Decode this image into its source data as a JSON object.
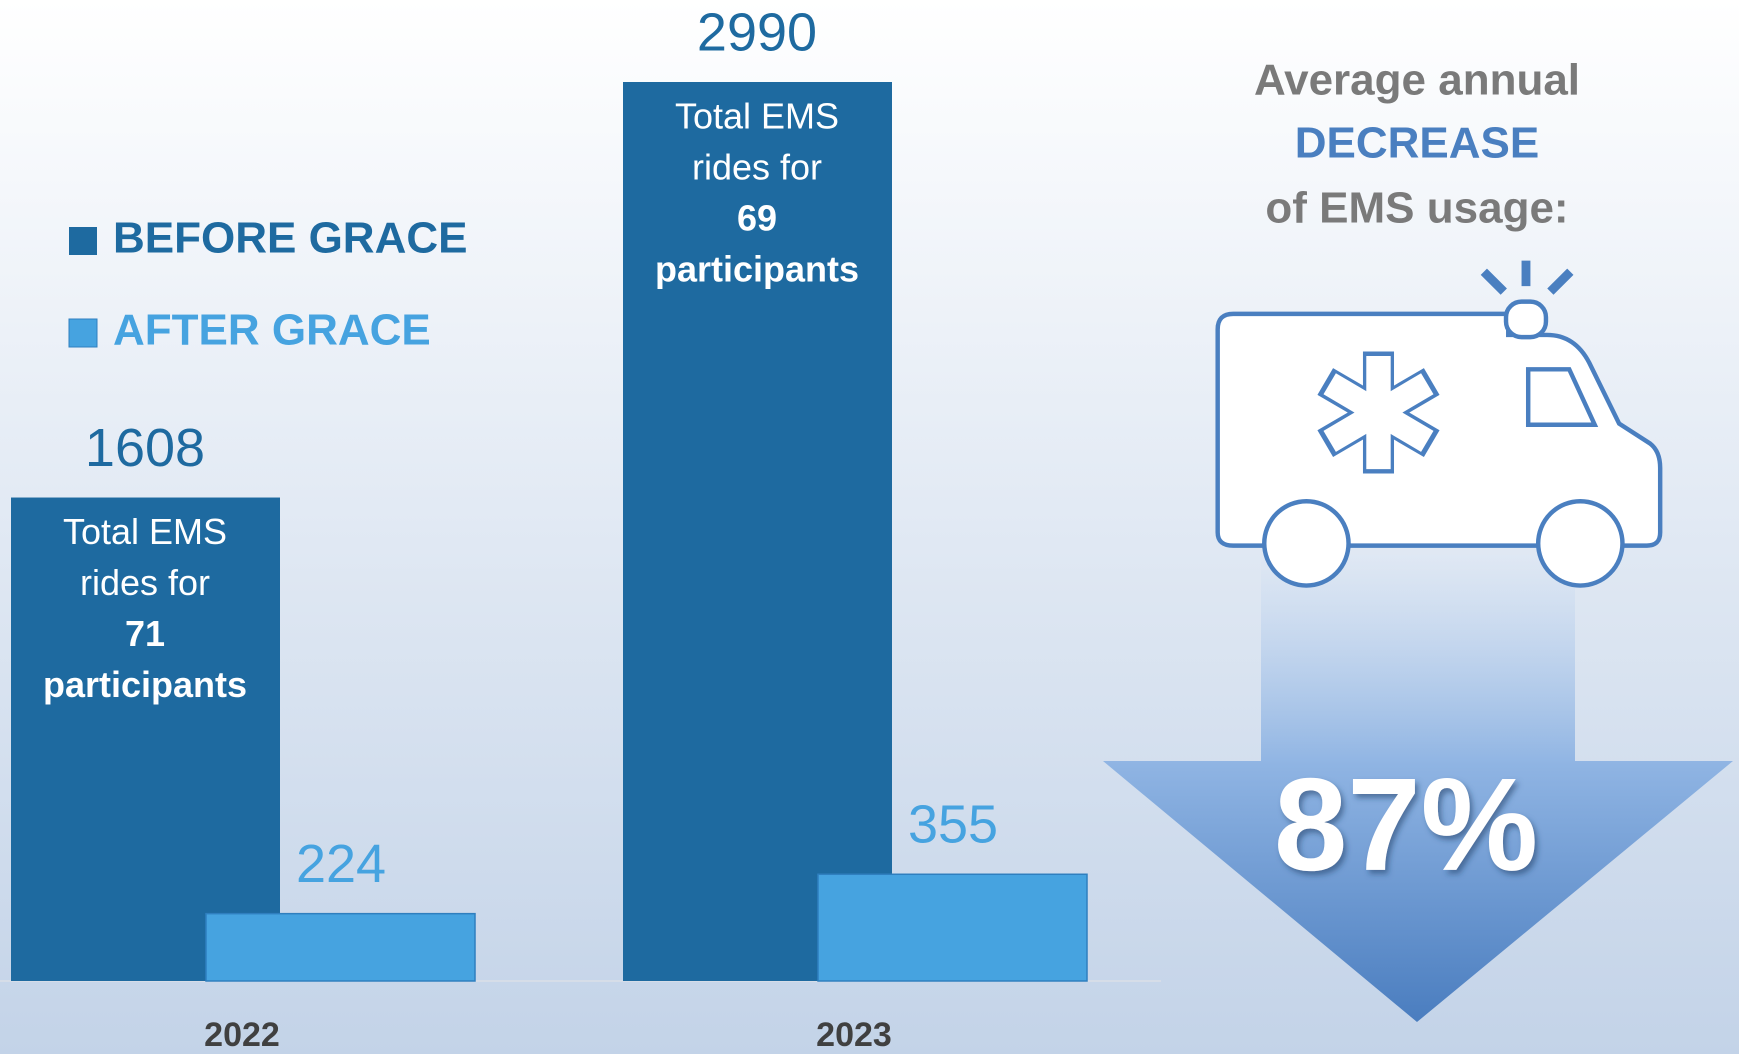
{
  "chart_data": {
    "type": "bar",
    "categories": [
      "2022",
      "2023"
    ],
    "series": [
      {
        "name": "BEFORE GRACE",
        "color": "#1e6aa0",
        "values": [
          1608,
          2990
        ]
      },
      {
        "name": "AFTER GRACE",
        "color": "#46a3e0",
        "values": [
          224,
          355
        ]
      }
    ],
    "bar_notes": [
      [
        "Total EMS",
        "rides for",
        "71",
        "participants"
      ],
      [
        "Total EMS",
        "rides for",
        "69",
        "participants"
      ]
    ],
    "ylim": [
      0,
      3000
    ],
    "callout": {
      "lines": [
        "Average annual",
        "DECREASE",
        "of EMS usage:"
      ],
      "value": 87,
      "value_label": "87%"
    }
  }
}
